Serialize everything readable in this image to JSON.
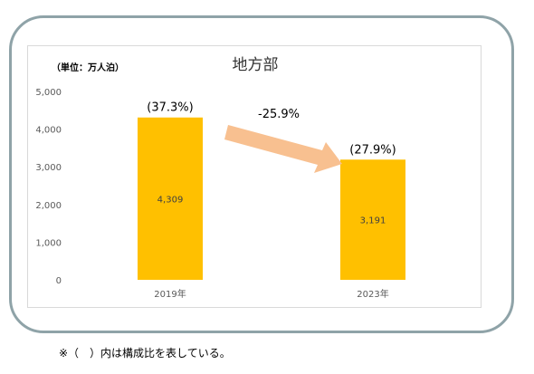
{
  "chart_data": {
    "type": "bar",
    "title": "地方部",
    "unit_label": "（単位：万人泊）",
    "categories": [
      "2019年",
      "2023年"
    ],
    "values": [
      4309,
      3191
    ],
    "value_labels": [
      "4,309",
      "3,191"
    ],
    "share_labels": [
      "(37.3%)",
      "(27.9%)"
    ],
    "change_label": "-25.9%",
    "ylim": [
      0,
      5000
    ],
    "yticks": [
      "0",
      "1,000",
      "2,000",
      "3,000",
      "4,000",
      "5,000"
    ],
    "grid": false,
    "colors": {
      "bar": "#FFC000",
      "arrow": "#F8C090",
      "frame": "#8FA3A8"
    }
  },
  "footnote": "※（　）内は構成比を表している。"
}
